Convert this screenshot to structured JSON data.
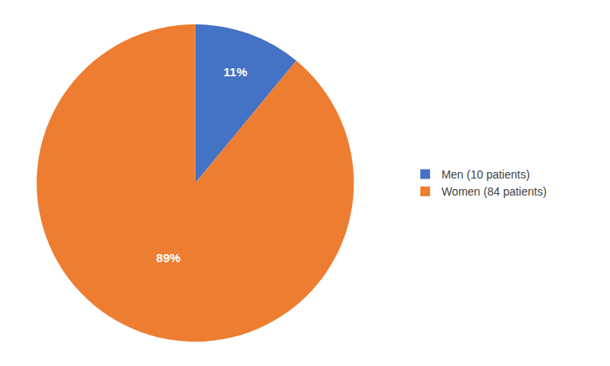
{
  "chart_data": {
    "type": "pie",
    "categories": [
      "Men (10 patients)",
      "Women (84 patients)"
    ],
    "values": [
      11,
      89
    ],
    "value_labels": [
      "11%",
      "89%"
    ],
    "colors": [
      "#4472C4",
      "#ED7D31"
    ],
    "data_labels": true,
    "legend": "right"
  }
}
